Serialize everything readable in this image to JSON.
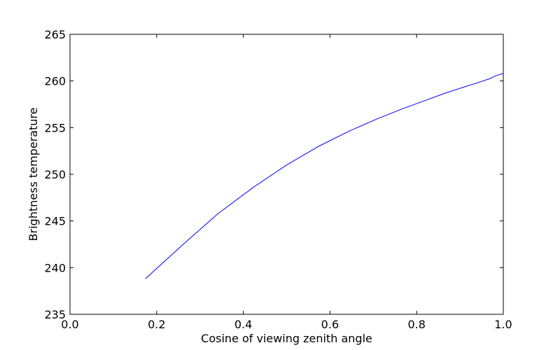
{
  "chart_data": {
    "type": "line",
    "title": "",
    "xlabel": "Cosine of viewing zenith angle",
    "ylabel": "Brightness temperature",
    "xlim": [
      0.0,
      1.0
    ],
    "ylim": [
      235,
      265
    ],
    "xticks": [
      0.0,
      0.2,
      0.4,
      0.6,
      0.8,
      1.0
    ],
    "xtick_labels": [
      "0.0",
      "0.2",
      "0.4",
      "0.6",
      "0.8",
      "1.0"
    ],
    "yticks": [
      235,
      240,
      245,
      250,
      255,
      260,
      265
    ],
    "ytick_labels": [
      "235",
      "240",
      "245",
      "250",
      "255",
      "260",
      "265"
    ],
    "grid": false,
    "legend": false,
    "series": [
      {
        "color": "#0000ff",
        "x": [
          0.174,
          0.259,
          0.342,
          0.423,
          0.5,
          0.574,
          0.643,
          0.707,
          0.766,
          0.819,
          0.866,
          0.906,
          0.94,
          0.966,
          0.985,
          1.0
        ],
        "y": [
          238.8,
          242.4,
          245.8,
          248.6,
          251.0,
          253.0,
          254.6,
          255.9,
          257.0,
          257.9,
          258.7,
          259.3,
          259.8,
          260.2,
          260.6,
          260.8
        ]
      }
    ]
  }
}
